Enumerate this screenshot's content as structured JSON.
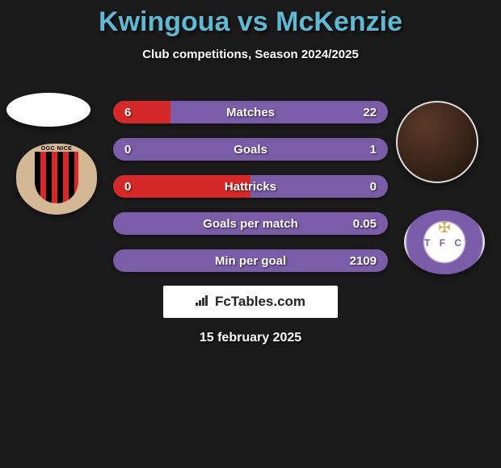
{
  "title": {
    "text": "Kwingoua vs McKenzie",
    "color": "#5fb8d4"
  },
  "subtitle": "Club competitions, Season 2024/2025",
  "colors": {
    "left": "#d62828",
    "right": "#7a5ca8",
    "bar_bg": "#6b6b6b",
    "text": "#ffffff"
  },
  "stats": [
    {
      "label": "Matches",
      "left_value": "6",
      "right_value": "22",
      "left_pct": 21,
      "right_pct": 79
    },
    {
      "label": "Goals",
      "left_value": "0",
      "right_value": "1",
      "left_pct": 0,
      "right_pct": 100
    },
    {
      "label": "Hattricks",
      "left_value": "0",
      "right_value": "0",
      "left_pct": 50,
      "right_pct": 50
    },
    {
      "label": "Goals per match",
      "left_value": "",
      "right_value": "0.05",
      "left_pct": 0,
      "right_pct": 100
    },
    {
      "label": "Min per goal",
      "left_value": "",
      "right_value": "2109",
      "left_pct": 0,
      "right_pct": 100
    }
  ],
  "branding": "FcTables.com",
  "date": "15 february 2025"
}
